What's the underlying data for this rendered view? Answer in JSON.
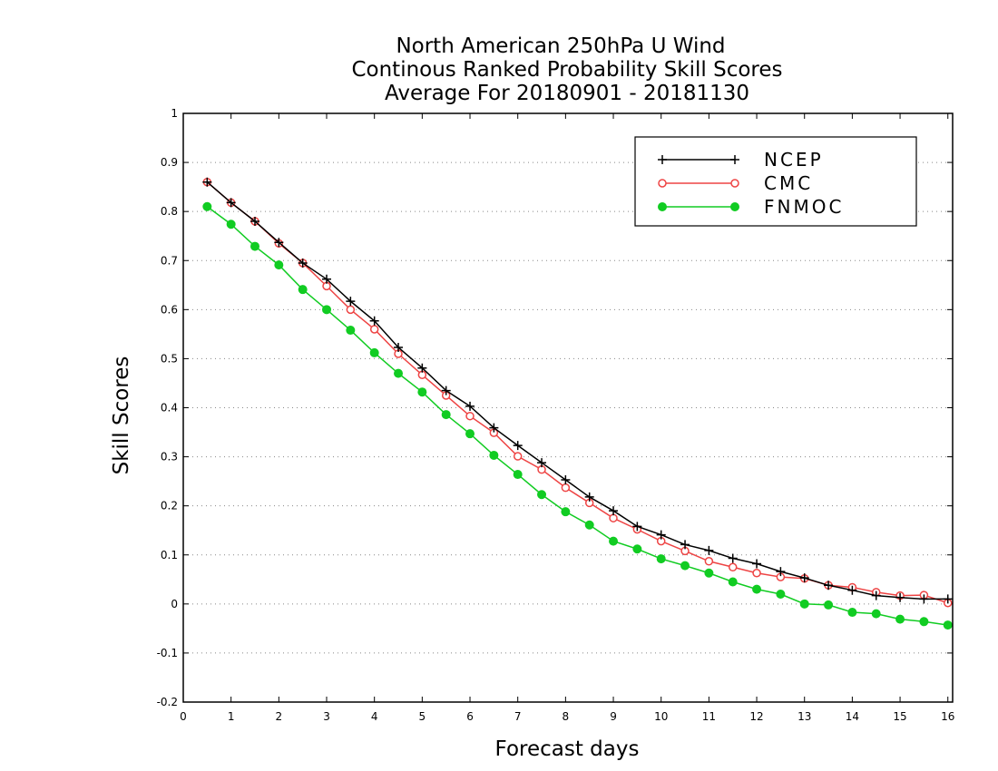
{
  "chart_data": {
    "type": "line",
    "title": [
      "North American 250hPa U Wind",
      "Continous Ranked Probability Skill Scores",
      "Average For 20180901 - 20181130"
    ],
    "xlabel": "Forecast days",
    "ylabel": "Skill Scores",
    "xlim": [
      0,
      16.1
    ],
    "ylim": [
      -0.2,
      1
    ],
    "xticks": [
      0,
      1,
      2,
      3,
      4,
      5,
      6,
      7,
      8,
      9,
      10,
      11,
      12,
      13,
      14,
      15,
      16
    ],
    "yticks": [
      -0.2,
      -0.1,
      0,
      0.1,
      0.2,
      0.3,
      0.4,
      0.5,
      0.6,
      0.7,
      0.8,
      0.9,
      1
    ],
    "ytick_labels": [
      "-0.2",
      "-0.1",
      "0",
      "0.1",
      "0.2",
      "0.3",
      "0.4",
      "0.5",
      "0.6",
      "0.7",
      "0.8",
      "0.9",
      "1"
    ],
    "grid": "horizontal dotted",
    "legend_position": "top-right",
    "x": [
      0.5,
      1,
      1.5,
      2,
      2.5,
      3,
      3.5,
      4,
      4.5,
      5,
      5.5,
      6,
      6.5,
      7,
      7.5,
      8,
      8.5,
      9,
      9.5,
      10,
      10.5,
      11,
      11.5,
      12,
      12.5,
      13,
      13.5,
      14,
      14.5,
      15,
      15.5,
      16
    ],
    "series": [
      {
        "name": "NCEP",
        "color": "#000000",
        "marker": "plus",
        "values": [
          0.86,
          0.818,
          0.78,
          0.737,
          0.695,
          0.662,
          0.617,
          0.577,
          0.523,
          0.481,
          0.435,
          0.403,
          0.359,
          0.323,
          0.288,
          0.253,
          0.218,
          0.19,
          0.158,
          0.141,
          0.121,
          0.109,
          0.093,
          0.082,
          0.066,
          0.053,
          0.038,
          0.028,
          0.017,
          0.013,
          0.01,
          0.01
        ]
      },
      {
        "name": "CMC",
        "color": "#ee4444",
        "marker": "open-circle",
        "values": [
          0.86,
          0.818,
          0.78,
          0.735,
          0.695,
          0.648,
          0.6,
          0.56,
          0.51,
          0.467,
          0.425,
          0.383,
          0.349,
          0.301,
          0.274,
          0.237,
          0.206,
          0.175,
          0.152,
          0.128,
          0.108,
          0.087,
          0.075,
          0.063,
          0.055,
          0.052,
          0.038,
          0.034,
          0.024,
          0.017,
          0.018,
          0.002
        ]
      },
      {
        "name": "FNMOC",
        "color": "#11cc22",
        "marker": "filled-circle",
        "values": [
          0.81,
          0.774,
          0.729,
          0.691,
          0.641,
          0.6,
          0.558,
          0.512,
          0.47,
          0.432,
          0.386,
          0.347,
          0.303,
          0.264,
          0.223,
          0.188,
          0.161,
          0.128,
          0.112,
          0.092,
          0.078,
          0.063,
          0.045,
          0.03,
          0.02,
          0.0,
          -0.002,
          -0.017,
          -0.02,
          -0.031,
          -0.036,
          -0.043
        ]
      }
    ]
  }
}
